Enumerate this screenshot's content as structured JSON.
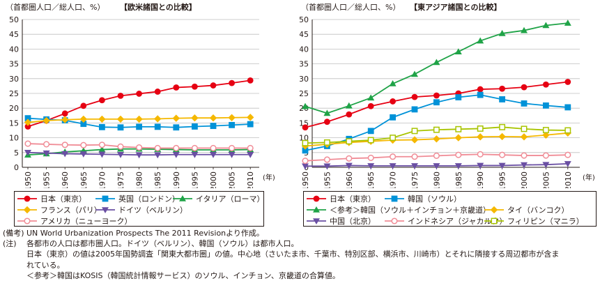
{
  "chart_data": [
    {
      "type": "line",
      "unit_label": "（首都圏人口／総人口、%）",
      "title": "【欧米諸国との比較】",
      "x_unit": "(年)",
      "x": [
        1950,
        1955,
        1960,
        1965,
        1970,
        1975,
        1980,
        1985,
        1990,
        1995,
        2000,
        2005,
        2010
      ],
      "ylim": [
        0,
        50
      ],
      "yticks": [
        0,
        5,
        10,
        15,
        20,
        25,
        30,
        35,
        40,
        45,
        50
      ],
      "grid": true,
      "series": [
        {
          "name": "日本（東京）",
          "color": "#e60012",
          "marker": "circle-filled",
          "values": [
            13.8,
            15.8,
            18.2,
            20.8,
            22.7,
            24.2,
            24.9,
            25.6,
            27.0,
            27.3,
            27.7,
            28.5,
            29.4
          ]
        },
        {
          "name": "英国（ロンドン）",
          "color": "#0092d8",
          "marker": "square-filled",
          "values": [
            16.6,
            16.2,
            15.9,
            14.7,
            13.6,
            13.5,
            13.7,
            13.7,
            13.5,
            13.8,
            14.0,
            14.3,
            14.6
          ]
        },
        {
          "name": "イタリア（ローマ）",
          "color": "#1fa347",
          "marker": "triangle-filled",
          "values": [
            4.2,
            4.6,
            5.2,
            5.6,
            6.0,
            6.2,
            6.2,
            6.1,
            6.0,
            5.9,
            5.9,
            5.9,
            6.0
          ]
        },
        {
          "name": "フランス（パリ）",
          "color": "#f5b800",
          "marker": "diamond-filled",
          "values": [
            15.2,
            15.8,
            16.1,
            16.3,
            16.3,
            16.3,
            16.3,
            16.4,
            16.6,
            16.7,
            16.7,
            16.8,
            16.9
          ]
        },
        {
          "name": "ドイツ（ベルリン）",
          "color": "#6a4fa3",
          "marker": "triangle-down-filled",
          "values": [
            5.0,
            4.8,
            4.6,
            4.5,
            4.4,
            4.3,
            4.2,
            4.2,
            4.3,
            4.3,
            4.3,
            4.3,
            4.3
          ]
        },
        {
          "name": "アメリカ（ニューヨーク）",
          "color": "#f08c96",
          "marker": "circle-open",
          "values": [
            8.0,
            7.8,
            7.6,
            7.5,
            7.6,
            7.0,
            6.7,
            6.5,
            6.5,
            6.5,
            6.5,
            6.5,
            6.5
          ]
        }
      ],
      "legend": "bottom"
    },
    {
      "type": "line",
      "unit_label": "（首都圏人口／総人口、%）",
      "title": "【東アジア諸国との比較】",
      "x_unit": "(年)",
      "x": [
        1950,
        1955,
        1960,
        1965,
        1970,
        1975,
        1980,
        1985,
        1990,
        1995,
        2000,
        2005,
        2010
      ],
      "ylim": [
        0,
        50
      ],
      "yticks": [
        0,
        5,
        10,
        15,
        20,
        25,
        30,
        35,
        40,
        45,
        50
      ],
      "grid": true,
      "series": [
        {
          "name": "日本（東京）",
          "color": "#e60012",
          "marker": "circle-filled",
          "values": [
            13.5,
            15.4,
            17.9,
            20.7,
            22.3,
            23.8,
            24.3,
            25.0,
            26.4,
            26.6,
            27.1,
            28.0,
            28.9
          ]
        },
        {
          "name": "韓国（ソウル）",
          "color": "#0092d8",
          "marker": "square-filled",
          "values": [
            5.7,
            7.2,
            9.6,
            12.3,
            16.9,
            19.6,
            22.0,
            23.7,
            24.5,
            23.0,
            21.6,
            20.9,
            20.3
          ]
        },
        {
          "name": "＜参考＞韓国（ソウル＋インチョン＋京畿道）",
          "color": "#1fa347",
          "marker": "triangle-filled",
          "values": [
            20.6,
            18.3,
            20.8,
            23.5,
            28.3,
            31.5,
            35.5,
            39.1,
            42.8,
            45.3,
            46.3,
            48.0,
            48.8
          ]
        },
        {
          "name": "タイ（バンコク）",
          "color": "#f5b800",
          "marker": "diamond-filled",
          "values": [
            7.2,
            7.8,
            8.4,
            8.8,
            9.2,
            9.3,
            9.6,
            10.0,
            10.3,
            10.4,
            10.3,
            10.9,
            11.6
          ]
        },
        {
          "name": "中国（北京）",
          "color": "#6a4fa3",
          "marker": "triangle-down-filled",
          "values": [
            0.4,
            0.4,
            0.6,
            0.5,
            0.5,
            0.5,
            0.5,
            0.5,
            0.6,
            0.6,
            0.8,
            0.9,
            1.2
          ]
        },
        {
          "name": "インドネシア（ジャカルタ）",
          "color": "#f08c96",
          "marker": "circle-open",
          "values": [
            2.2,
            2.6,
            3.0,
            3.2,
            3.6,
            3.6,
            3.9,
            4.2,
            4.4,
            4.2,
            4.0,
            4.0,
            4.2
          ]
        },
        {
          "name": "フィリピン（マニラ）",
          "color": "#a8c400",
          "marker": "square-open",
          "values": [
            8.2,
            8.4,
            8.8,
            9.2,
            10.0,
            12.3,
            12.7,
            12.9,
            13.1,
            13.6,
            13.0,
            12.6,
            12.5
          ]
        }
      ],
      "legend": "bottom"
    }
  ],
  "notes": [
    {
      "label": "(備考)",
      "text": "UN World Urbanization Prospects The 2011 Revisionより作成。"
    },
    {
      "label": "(注)",
      "text": "各都市の人口は都市圏人口。ドイツ（ベルリン）、韓国（ソウル）は都市人口。"
    },
    {
      "label": "",
      "text": "日本（東京）の値は2005年国勢調査「関東大都市圏」の値。中心地（さいたま市、千葉市、特別区部、横浜市、川崎市）とそれに隣接する周辺都市が含ま"
    },
    {
      "label": "",
      "text": "れている。"
    },
    {
      "label": "",
      "text": "＜参考＞韓国はKOSIS（韓国統計情報サービス）のソウル、インチョン、京畿道の合算値。"
    }
  ]
}
